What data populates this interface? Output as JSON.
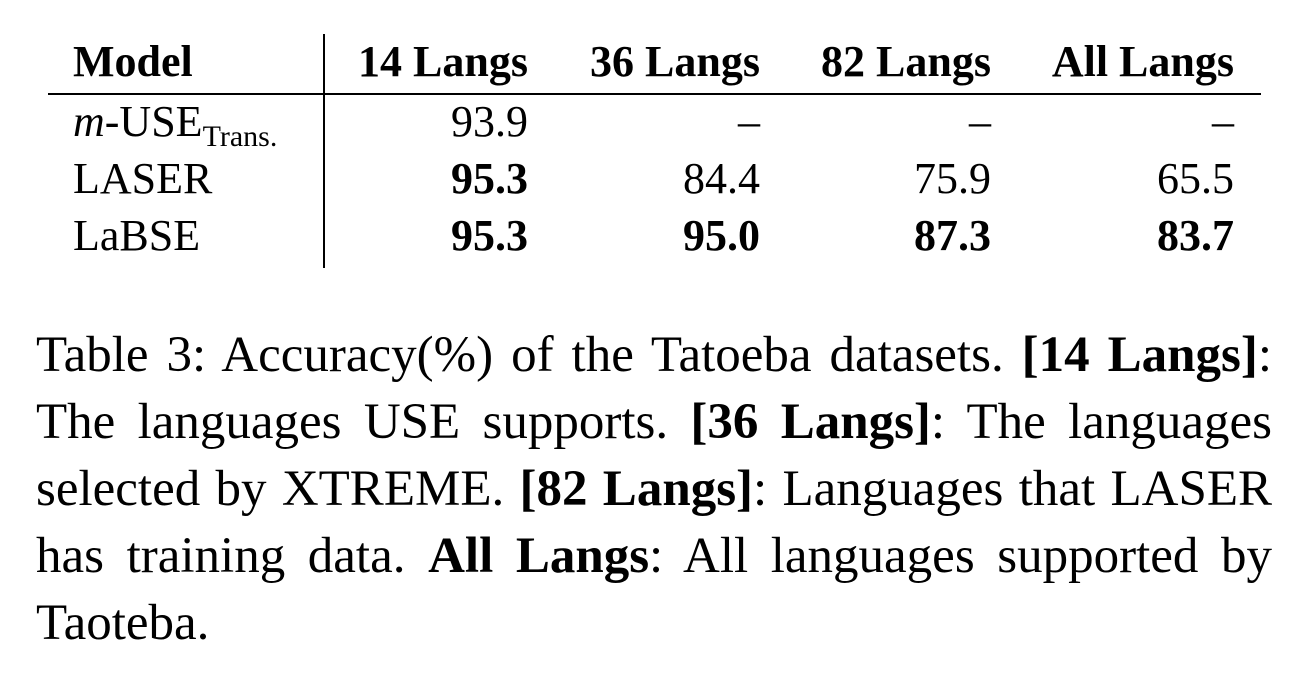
{
  "table": {
    "headers": [
      "Model",
      "14 Langs",
      "36 Langs",
      "82 Langs",
      "All Langs"
    ],
    "rows": [
      {
        "model_prefix": "m",
        "model_main": "-USE",
        "model_sub": "Trans.",
        "values": [
          "93.9",
          "–",
          "–",
          "–"
        ],
        "bold": [
          false,
          false,
          false,
          false
        ]
      },
      {
        "model": "LASER",
        "values": [
          "95.3",
          "84.4",
          "75.9",
          "65.5"
        ],
        "bold": [
          true,
          false,
          false,
          false
        ]
      },
      {
        "model": "LaBSE",
        "values": [
          "95.3",
          "95.0",
          "87.3",
          "83.7"
        ],
        "bold": [
          true,
          true,
          true,
          true
        ]
      }
    ]
  },
  "caption": {
    "t1": "Table 3: Accuracy(%) of the Tatoeba datasets. ",
    "b1": "[14 Langs]",
    "t2": ": The languages USE supports. ",
    "b2": "[36 Langs]",
    "t3": ": The languages selected by XTREME. ",
    "b3": "[82 Langs]",
    "t4": ": Languages that LASER has training data. ",
    "b4": "All Langs",
    "t5": ": All languages supported by Taoteba."
  }
}
